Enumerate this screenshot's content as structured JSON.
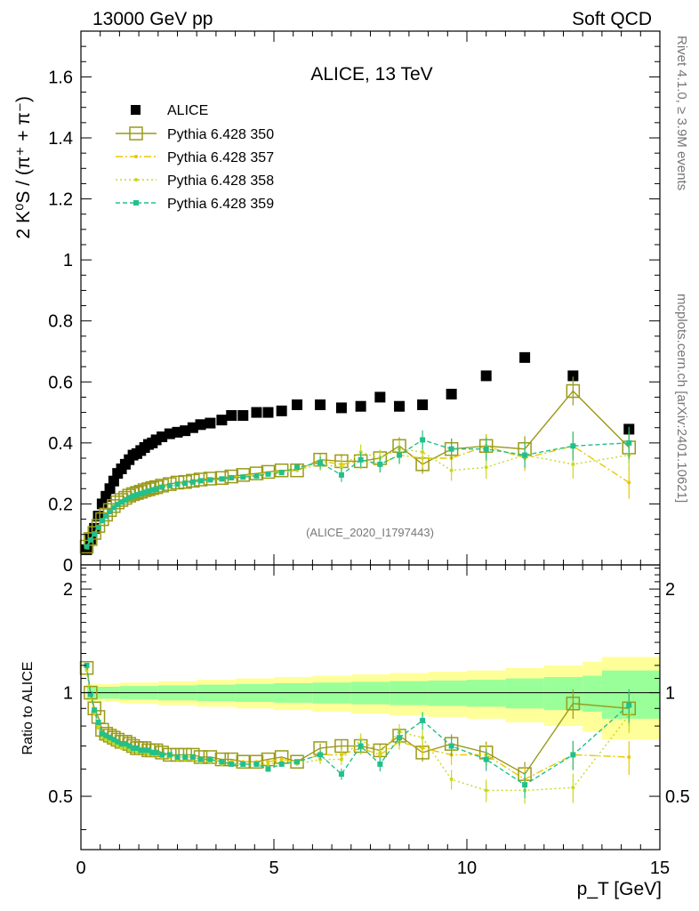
{
  "header": {
    "left": "13000 GeV pp",
    "right": "Soft QCD"
  },
  "side_labels": {
    "rivet": "Rivet 4.1.0, ≥ 3.9M events",
    "mcplots": "mcplots.cern.ch [arXiv:2401.10621]"
  },
  "chart_data": {
    "type": "scatter",
    "title": "ALICE, 13 TeV",
    "analysis_id": "(ALICE_2020_I1797443)",
    "ylabel": "2 K⁰S / (π⁺ + π⁻)",
    "xlabel": "p_T [GeV]",
    "ratio_ylabel": "Ratio to ALICE",
    "xlim": [
      0,
      15
    ],
    "ylim": [
      0,
      1.75
    ],
    "ratio_ylim": [
      0.35,
      2.35
    ],
    "x_ticks": [
      0,
      5,
      10,
      15
    ],
    "y_ticks": [
      0,
      0.2,
      0.4,
      0.6,
      0.8,
      1,
      1.2,
      1.4,
      1.6
    ],
    "ratio_ticks": [
      0.5,
      1,
      2
    ],
    "legend": [
      "ALICE",
      "Pythia 6.428 350",
      "Pythia 6.428 357",
      "Pythia 6.428 358",
      "Pythia 6.428 359"
    ],
    "x": [
      0.15,
      0.25,
      0.35,
      0.45,
      0.55,
      0.65,
      0.75,
      0.85,
      0.95,
      1.05,
      1.15,
      1.25,
      1.35,
      1.45,
      1.55,
      1.65,
      1.75,
      1.85,
      1.95,
      2.1,
      2.3,
      2.5,
      2.7,
      2.9,
      3.1,
      3.35,
      3.65,
      3.9,
      4.2,
      4.55,
      4.85,
      5.2,
      5.6,
      6.2,
      6.75,
      7.25,
      7.75,
      8.25,
      8.85,
      9.6,
      10.5,
      11.5,
      12.75,
      14.2
    ],
    "band_edges": [
      0.15,
      1,
      2,
      3,
      4,
      5,
      6,
      7,
      8,
      9,
      10,
      11,
      12,
      13,
      13.5,
      15
    ],
    "band_yellow_halfwidth": [
      0.06,
      0.07,
      0.08,
      0.09,
      0.1,
      0.11,
      0.12,
      0.13,
      0.14,
      0.15,
      0.16,
      0.18,
      0.2,
      0.23,
      0.27
    ],
    "band_green_halfwidth": [
      0.04,
      0.045,
      0.05,
      0.055,
      0.06,
      0.065,
      0.07,
      0.075,
      0.08,
      0.085,
      0.09,
      0.1,
      0.11,
      0.12,
      0.16
    ],
    "series": [
      {
        "name": "ALICE",
        "color": "#000000",
        "marker": "filled-square",
        "values": [
          0.05,
          0.085,
          0.12,
          0.16,
          0.2,
          0.225,
          0.25,
          0.275,
          0.3,
          0.315,
          0.33,
          0.345,
          0.36,
          0.365,
          0.375,
          0.385,
          0.395,
          0.4,
          0.41,
          0.42,
          0.43,
          0.435,
          0.44,
          0.45,
          0.46,
          0.465,
          0.475,
          0.49,
          0.49,
          0.5,
          0.5,
          0.505,
          0.525,
          0.525,
          0.515,
          0.52,
          0.55,
          0.52,
          0.525,
          0.56,
          0.62,
          0.68,
          0.62,
          0.445
        ]
      },
      {
        "name": "Pythia 6.428 350",
        "color": "#9a9a1a",
        "marker": "open-square",
        "line": "solid",
        "values": [
          0.06,
          0.085,
          0.105,
          0.128,
          0.15,
          0.165,
          0.18,
          0.193,
          0.205,
          0.213,
          0.22,
          0.227,
          0.232,
          0.236,
          0.24,
          0.245,
          0.248,
          0.252,
          0.255,
          0.26,
          0.265,
          0.27,
          0.272,
          0.276,
          0.28,
          0.283,
          0.285,
          0.29,
          0.295,
          0.3,
          0.305,
          0.31,
          0.31,
          0.345,
          0.34,
          0.34,
          0.35,
          0.39,
          0.33,
          0.38,
          0.39,
          0.38,
          0.57,
          0.385
        ]
      },
      {
        "name": "Pythia 6.428 357",
        "color": "#e8c800",
        "marker": "small-triangle",
        "line": "dash-dot",
        "values": [
          0.06,
          0.083,
          0.103,
          0.125,
          0.147,
          0.162,
          0.177,
          0.19,
          0.2,
          0.208,
          0.215,
          0.222,
          0.228,
          0.232,
          0.236,
          0.24,
          0.244,
          0.248,
          0.252,
          0.257,
          0.262,
          0.267,
          0.27,
          0.273,
          0.277,
          0.28,
          0.283,
          0.287,
          0.292,
          0.297,
          0.302,
          0.307,
          0.315,
          0.34,
          0.33,
          0.34,
          0.33,
          0.36,
          0.35,
          0.35,
          0.39,
          0.35,
          0.39,
          0.27
        ]
      },
      {
        "name": "Pythia 6.428 358",
        "color": "#c8d81e",
        "marker": "small-dot",
        "line": "dotted",
        "values": [
          0.058,
          0.081,
          0.1,
          0.122,
          0.143,
          0.158,
          0.173,
          0.186,
          0.196,
          0.204,
          0.211,
          0.218,
          0.224,
          0.228,
          0.232,
          0.236,
          0.24,
          0.244,
          0.248,
          0.253,
          0.258,
          0.263,
          0.266,
          0.27,
          0.274,
          0.277,
          0.28,
          0.284,
          0.289,
          0.294,
          0.299,
          0.304,
          0.31,
          0.33,
          0.32,
          0.37,
          0.35,
          0.38,
          0.37,
          0.31,
          0.32,
          0.36,
          0.33,
          0.36
        ]
      },
      {
        "name": "Pythia 6.428 359",
        "color": "#22c08a",
        "marker": "filled-square-small",
        "line": "dashed",
        "values": [
          0.059,
          0.082,
          0.101,
          0.123,
          0.145,
          0.16,
          0.175,
          0.188,
          0.198,
          0.206,
          0.213,
          0.22,
          0.226,
          0.23,
          0.234,
          0.238,
          0.242,
          0.246,
          0.25,
          0.255,
          0.26,
          0.265,
          0.268,
          0.272,
          0.276,
          0.279,
          0.282,
          0.286,
          0.288,
          0.292,
          0.298,
          0.303,
          0.32,
          0.335,
          0.295,
          0.345,
          0.33,
          0.36,
          0.41,
          0.38,
          0.38,
          0.36,
          0.39,
          0.4
        ]
      }
    ],
    "ratio_series": [
      {
        "name": "Pythia 6.428 350",
        "values": [
          1.18,
          1.0,
          0.9,
          0.85,
          0.78,
          0.76,
          0.75,
          0.74,
          0.73,
          0.72,
          0.72,
          0.71,
          0.7,
          0.69,
          0.69,
          0.69,
          0.68,
          0.68,
          0.68,
          0.67,
          0.66,
          0.66,
          0.66,
          0.66,
          0.65,
          0.65,
          0.64,
          0.64,
          0.63,
          0.63,
          0.64,
          0.65,
          0.63,
          0.69,
          0.7,
          0.7,
          0.68,
          0.75,
          0.67,
          0.71,
          0.67,
          0.58,
          0.93,
          0.9
        ]
      },
      {
        "name": "Pythia 6.428 357",
        "values": [
          1.17,
          0.98,
          0.88,
          0.8,
          0.75,
          0.74,
          0.73,
          0.72,
          0.71,
          0.7,
          0.7,
          0.69,
          0.69,
          0.68,
          0.68,
          0.68,
          0.67,
          0.67,
          0.67,
          0.66,
          0.66,
          0.65,
          0.65,
          0.65,
          0.64,
          0.64,
          0.63,
          0.63,
          0.63,
          0.63,
          0.63,
          0.64,
          0.63,
          0.66,
          0.66,
          0.69,
          0.66,
          0.72,
          0.69,
          0.66,
          0.66,
          0.56,
          0.66,
          0.65
        ]
      },
      {
        "name": "Pythia 6.428 358",
        "values": [
          1.16,
          0.97,
          0.87,
          0.79,
          0.74,
          0.73,
          0.72,
          0.71,
          0.7,
          0.69,
          0.69,
          0.68,
          0.68,
          0.67,
          0.67,
          0.67,
          0.66,
          0.66,
          0.66,
          0.65,
          0.65,
          0.64,
          0.64,
          0.64,
          0.63,
          0.63,
          0.62,
          0.62,
          0.62,
          0.62,
          0.62,
          0.63,
          0.62,
          0.64,
          0.64,
          0.73,
          0.67,
          0.77,
          0.74,
          0.56,
          0.52,
          0.52,
          0.53,
          0.86
        ]
      },
      {
        "name": "Pythia 6.428 359",
        "values": [
          1.2,
          0.99,
          0.89,
          0.82,
          0.76,
          0.75,
          0.74,
          0.73,
          0.72,
          0.71,
          0.71,
          0.7,
          0.69,
          0.69,
          0.68,
          0.68,
          0.68,
          0.67,
          0.67,
          0.66,
          0.66,
          0.65,
          0.65,
          0.65,
          0.64,
          0.64,
          0.63,
          0.62,
          0.62,
          0.62,
          0.6,
          0.62,
          0.63,
          0.66,
          0.58,
          0.7,
          0.62,
          0.74,
          0.83,
          0.7,
          0.64,
          0.54,
          0.66,
          0.92
        ]
      }
    ]
  }
}
